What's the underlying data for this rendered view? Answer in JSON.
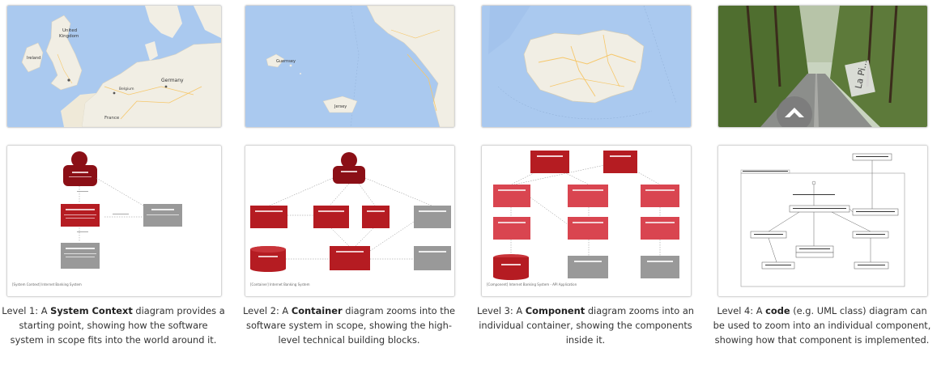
{
  "maps": {
    "europe": {
      "label_uk": "United\nKingdom",
      "label_de": "Germany",
      "label_ie": "Ireland",
      "label_be": "Belgium",
      "label_fr": "France"
    },
    "channel": {
      "label_guernsey": "Guernsey",
      "label_jersey": "Jersey"
    },
    "street": {
      "sign": "La Pi..."
    }
  },
  "diagrams": {
    "context": {
      "footer": "[System Context] Internet Banking System"
    },
    "container": {
      "footer": "[Container] Internet Banking System"
    },
    "component": {
      "footer": "[Component] Internet Banking System - API Application"
    }
  },
  "captions": [
    {
      "prefix": "Level 1: A ",
      "bold": "System Context",
      "suffix": " diagram provides a starting point, showing how the software system in scope fits into the world around it."
    },
    {
      "prefix": "Level 2: A ",
      "bold": "Container",
      "suffix": " diagram zooms into the software system in scope, showing the high-level technical building blocks."
    },
    {
      "prefix": "Level 3: A ",
      "bold": "Component",
      "suffix": " diagram zooms into an individual container, showing the components inside it."
    },
    {
      "prefix": "Level 4: A ",
      "bold": "code",
      "suffix": " (e.g. UML class) diagram can be used to zoom into an individual component, showing how that component is implemented."
    }
  ],
  "colors": {
    "person": "#8b0f16",
    "system": "#b51c22",
    "external": "#999999",
    "component": "#d94550",
    "map_water": "#a9c8ef",
    "map_land": "#f2efe6"
  }
}
